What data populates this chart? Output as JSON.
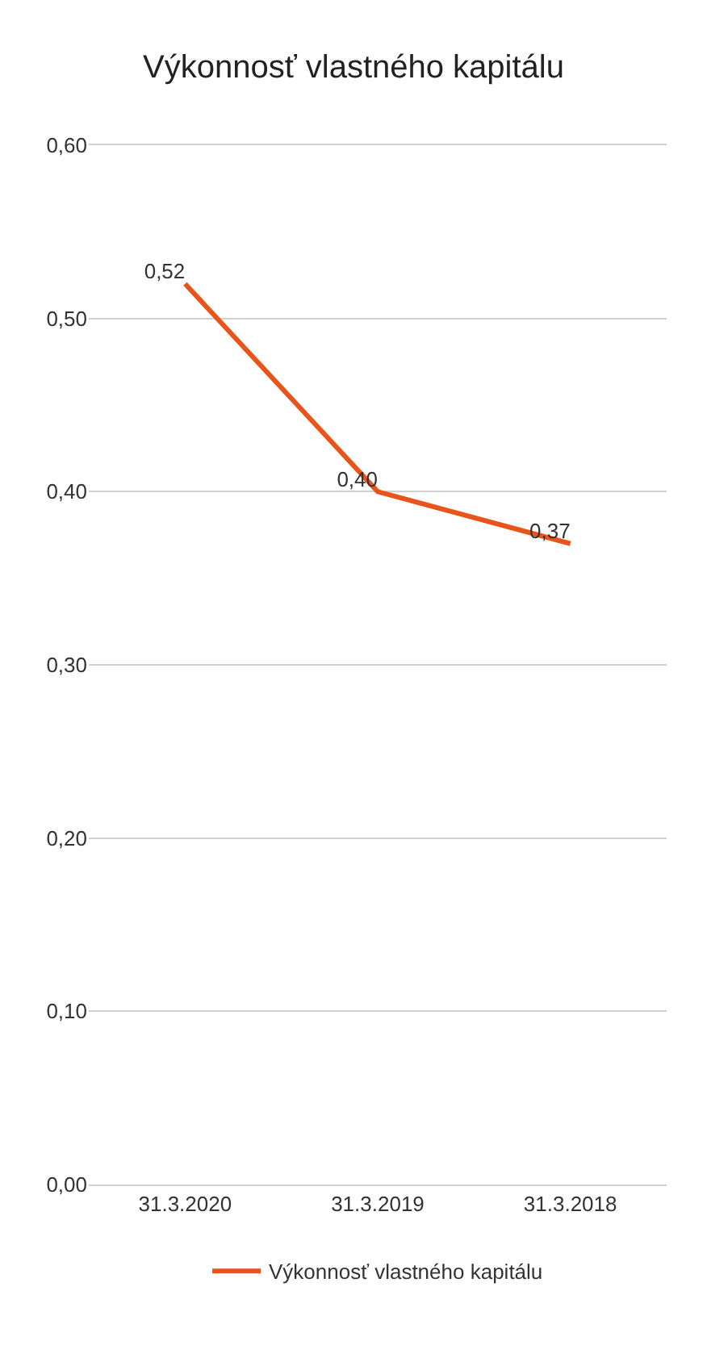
{
  "chart_data": {
    "type": "line",
    "title": "Výkonnosť vlastného kapitálu",
    "categories": [
      "31.3.2020",
      "31.3.2019",
      "31.3.2018"
    ],
    "series": [
      {
        "name": "Výkonnosť vlastného kapitálu",
        "color": "#e8541a",
        "values": [
          0.52,
          0.4,
          0.37
        ],
        "value_labels": [
          "0,52",
          "0,40",
          "0,37"
        ]
      }
    ],
    "ylim": [
      0,
      0.6
    ],
    "yticks": [
      {
        "value": 0,
        "label": "0,00"
      },
      {
        "value": 0.1,
        "label": "0,10"
      },
      {
        "value": 0.2,
        "label": "0,20"
      },
      {
        "value": 0.3,
        "label": "0,30"
      },
      {
        "value": 0.4,
        "label": "0,40"
      },
      {
        "value": 0.5,
        "label": "0,50"
      },
      {
        "value": 0.6,
        "label": "0,60"
      }
    ],
    "grid": "y",
    "legend": "bottom",
    "marker": "none",
    "line_style": "solid"
  }
}
